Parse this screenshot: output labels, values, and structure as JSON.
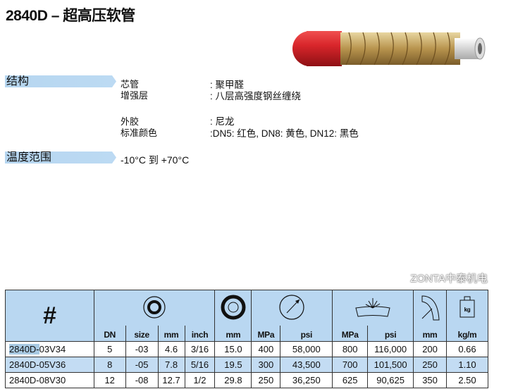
{
  "title": "2840D – 超高压软管",
  "structure": {
    "heading": "结构",
    "items": [
      {
        "label": "芯管",
        "value": ": 聚甲醛"
      },
      {
        "label": "增强层",
        "value": ": 八层高强度钢丝缠绕"
      },
      {
        "label": "外胶",
        "value": ": 尼龙"
      },
      {
        "label": "标准颜色",
        "value": ":DN5: 红色, DN8: 黄色, DN12: 黑色"
      }
    ]
  },
  "temperature": {
    "heading": "温度范围",
    "value": "-10°C 到 +70°C"
  },
  "table": {
    "hash": "#",
    "units": [
      "DN",
      "size",
      "mm",
      "inch",
      "mm",
      "MPa",
      "psi",
      "MPa",
      "psi",
      "mm",
      "kg/m"
    ],
    "icons": [
      "inner-diameter-icon",
      "outer-diameter-icon",
      "working-pressure-gauge-icon",
      "burst-pressure-icon",
      "bend-radius-icon",
      "weight-kg-icon"
    ],
    "rows": [
      {
        "part_prefix": "2840D-",
        "part_suffix": "03V34",
        "cells": [
          "5",
          "-03",
          "4.6",
          "3/16",
          "15.0",
          "400",
          "58,000",
          "800",
          "116,000",
          "200",
          "0.66"
        ]
      },
      {
        "part_prefix": "2840D-",
        "part_suffix": "05V36",
        "cells": [
          "8",
          "-05",
          "7.8",
          "5/16",
          "19.5",
          "300",
          "43,500",
          "700",
          "101,500",
          "250",
          "1.10"
        ]
      },
      {
        "part_prefix": "2840D-",
        "part_suffix": "08V30",
        "cells": [
          "12",
          "-08",
          "12.7",
          "1/2",
          "29.8",
          "250",
          "36,250",
          "625",
          "90,625",
          "350",
          "2.50"
        ]
      }
    ]
  },
  "watermark": "ZONTA中泰机电",
  "colors": {
    "band": "#b6d6f0",
    "hose_red": "#d8262b",
    "row_alt": "#c3dcf3"
  }
}
